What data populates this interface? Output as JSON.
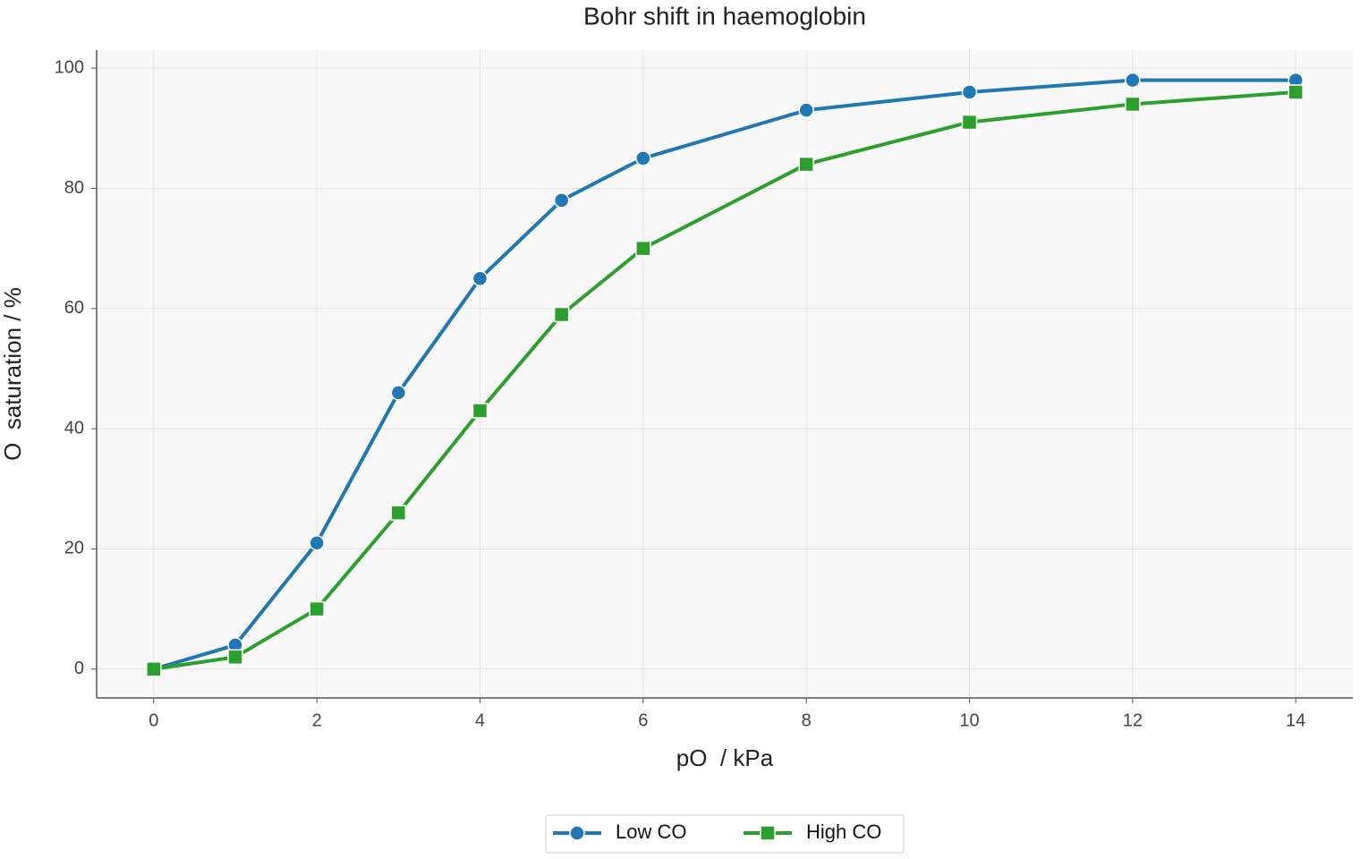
{
  "chart_data": {
    "type": "line",
    "title": "Bohr shift in haemoglobin",
    "x_label": "pO  / kPa",
    "y_label": "O  saturation / %",
    "x": [
      0,
      1,
      2,
      3,
      4,
      5,
      6,
      8,
      10,
      12,
      14
    ],
    "series": [
      {
        "name": "Low CO",
        "color": "#1f77b4",
        "marker": "circle",
        "values": [
          0,
          4,
          21,
          46,
          65,
          78,
          85,
          93,
          96,
          98,
          98
        ]
      },
      {
        "name": "High CO",
        "color": "#2ca02c",
        "marker": "square",
        "values": [
          0,
          2,
          10,
          26,
          43,
          59,
          70,
          84,
          91,
          94,
          96
        ]
      }
    ],
    "xlim": [
      -0.7,
      14.7
    ],
    "xticks": [
      0,
      2,
      4,
      6,
      8,
      10,
      12,
      14
    ],
    "ylim": [
      -4.8,
      103
    ],
    "yticks": [
      0,
      20,
      40,
      60,
      80,
      100
    ],
    "grid": true,
    "legend": "bottom"
  }
}
